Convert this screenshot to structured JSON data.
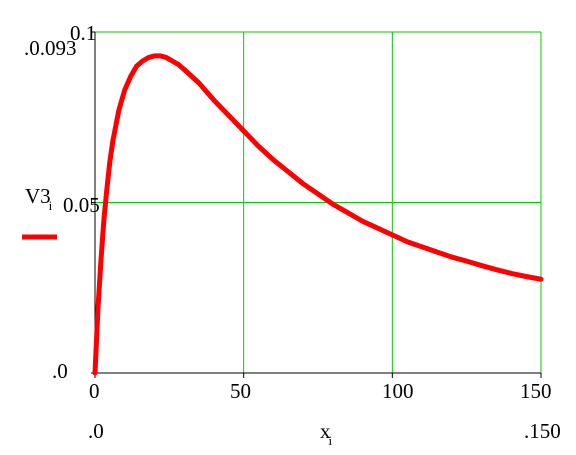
{
  "chart_data": {
    "type": "line",
    "title": "",
    "xlabel": "x",
    "xlabel_subscript": "i",
    "ylabel": "V3",
    "ylabel_subscript": "i",
    "xlim": [
      0,
      150
    ],
    "ylim": [
      0,
      0.1
    ],
    "x_ticks": [
      0,
      50,
      100,
      150
    ],
    "y_ticks": [
      0,
      0.05,
      0.1
    ],
    "y_max_marker": "0.093",
    "x_range_labels": [
      ".0",
      ".150"
    ],
    "y_range_labels": [
      ".0",
      ".0.093"
    ],
    "grid": true,
    "legend_position": "left",
    "series": [
      {
        "name": "V3",
        "color": "#ff0000",
        "x": [
          0,
          1,
          2,
          3,
          4,
          5,
          6,
          8,
          10,
          12,
          14,
          16,
          18,
          20,
          22,
          24,
          26,
          28,
          30,
          35,
          40,
          45,
          50,
          55,
          60,
          65,
          70,
          75,
          80,
          85,
          90,
          95,
          100,
          105,
          110,
          115,
          120,
          125,
          130,
          135,
          140,
          145,
          150
        ],
        "y": [
          0,
          0.019,
          0.033,
          0.045,
          0.054,
          0.062,
          0.068,
          0.077,
          0.083,
          0.087,
          0.09,
          0.0915,
          0.0925,
          0.093,
          0.093,
          0.0925,
          0.0915,
          0.0905,
          0.089,
          0.085,
          0.08,
          0.0755,
          0.071,
          0.0665,
          0.0625,
          0.059,
          0.0555,
          0.0525,
          0.0495,
          0.047,
          0.0445,
          0.0425,
          0.0405,
          0.0385,
          0.037,
          0.0355,
          0.034,
          0.0328,
          0.0315,
          0.0303,
          0.0292,
          0.0283,
          0.0275
        ]
      }
    ]
  },
  "colors": {
    "grid": "#00cc00",
    "axes": "#000000",
    "series": "#ff0000"
  }
}
